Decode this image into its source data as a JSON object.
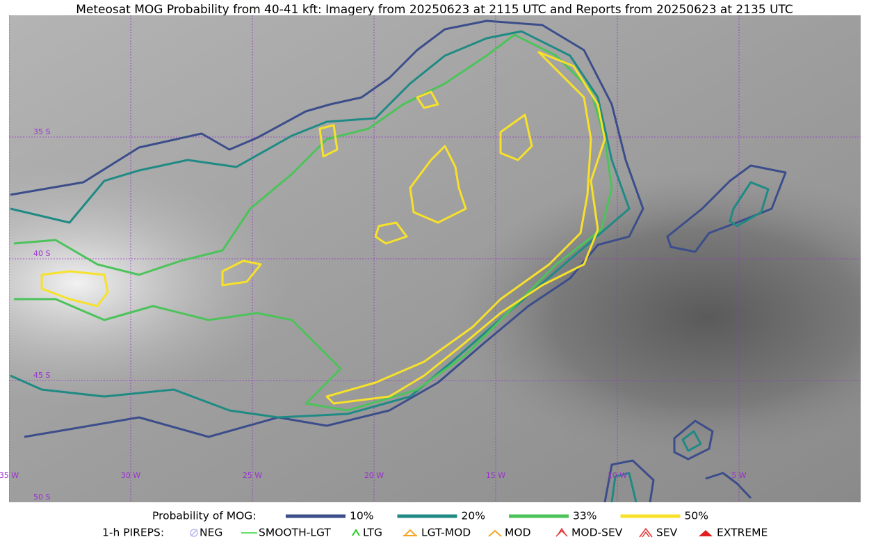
{
  "title": "Meteosat MOG Probability from 40-41 kft: Imagery from 20250623 at 2115 UTC and Reports from 20250623 at 2135 UTC",
  "map": {
    "lat_labels": [
      "35 S",
      "40 S",
      "45 S",
      "50 S"
    ],
    "lon_labels": [
      "35 W",
      "30 W",
      "25 W",
      "20 W",
      "15 W",
      "10 W",
      "5 W"
    ]
  },
  "legend": {
    "probability": {
      "label": "Probability of MOG:",
      "items": [
        {
          "label": "10%",
          "color": "#3b4d8a"
        },
        {
          "label": "20%",
          "color": "#1f8a84"
        },
        {
          "label": "33%",
          "color": "#4cc35a"
        },
        {
          "label": "50%",
          "color": "#f7e12a"
        }
      ]
    },
    "pireps": {
      "label": "1-h PIREPS:",
      "items": [
        "NEG",
        "SMOOTH-LGT",
        "LTG",
        "LGT-MOD",
        "MOD",
        "MOD-SEV",
        "SEV",
        "EXTREME"
      ]
    }
  }
}
